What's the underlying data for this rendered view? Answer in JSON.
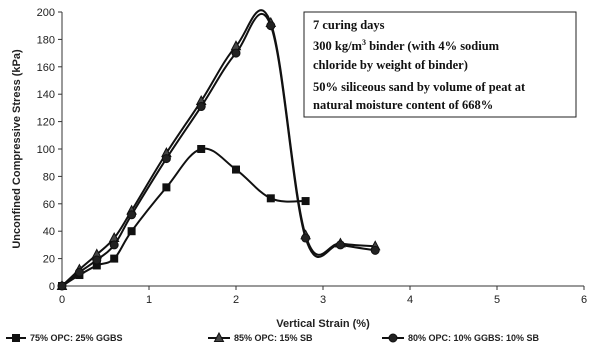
{
  "chart_data": {
    "type": "line",
    "xlabel": "Vertical Strain (%)",
    "ylabel": "Unconfined Compressive Stress (kPa)",
    "xlim": [
      0,
      6
    ],
    "ylim": [
      0,
      200
    ],
    "x_ticks": [
      "0",
      "1",
      "2",
      "3",
      "4",
      "5",
      "6"
    ],
    "y_ticks": [
      "0",
      "20",
      "40",
      "60",
      "80",
      "100",
      "120",
      "140",
      "160",
      "180",
      "200"
    ],
    "grid": false,
    "legend_position": "bottom",
    "annotation": {
      "line1": "7 curing days",
      "line2_pre": "300 kg/m",
      "line2_sup": "3",
      "line2_post": " binder (with 4% sodium",
      "line3": "chloride by weight of binder)",
      "line4": "50% siliceous sand by volume of peat at",
      "line5": "natural moisture content of 668%"
    },
    "series": [
      {
        "name": "75% OPC: 25% GGBS",
        "marker": "square",
        "color": "#111111",
        "x": [
          0,
          0.2,
          0.4,
          0.6,
          0.8,
          1.2,
          1.6,
          2.0,
          2.4,
          2.8
        ],
        "y": [
          0,
          8,
          15,
          20,
          40,
          72,
          100,
          85,
          64,
          62
        ]
      },
      {
        "name": "85% OPC: 15% SB",
        "marker": "triangle",
        "color": "#111111",
        "x": [
          0,
          0.2,
          0.4,
          0.6,
          0.8,
          1.2,
          1.6,
          2.0,
          2.4,
          2.8,
          3.2,
          3.6
        ],
        "y": [
          0,
          12,
          23,
          35,
          55,
          97,
          135,
          175,
          192,
          37,
          31,
          29
        ]
      },
      {
        "name": "80% OPC: 10% GGBS: 10% SB",
        "marker": "circle",
        "color": "#111111",
        "x": [
          0,
          0.2,
          0.4,
          0.6,
          0.8,
          1.2,
          1.6,
          2.0,
          2.4,
          2.8,
          3.2,
          3.6
        ],
        "y": [
          0,
          10,
          19,
          30,
          52,
          93,
          131,
          170,
          190,
          35,
          30,
          26
        ]
      }
    ]
  }
}
